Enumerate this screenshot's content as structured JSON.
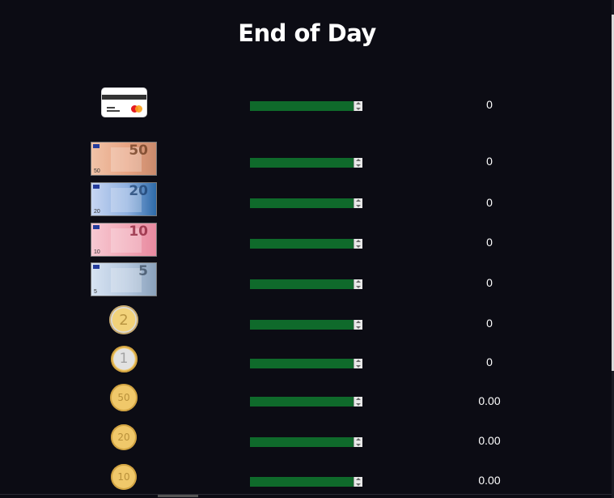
{
  "title": "End of Day",
  "rows": [
    {
      "kind": "card",
      "icon": "credit-card-icon",
      "value": "0"
    },
    {
      "kind": "note",
      "icon": "euro-50-note-icon",
      "denom": "50",
      "value": "0"
    },
    {
      "kind": "note",
      "icon": "euro-20-note-icon",
      "denom": "20",
      "value": "0"
    },
    {
      "kind": "note",
      "icon": "euro-10-note-icon",
      "denom": "10",
      "value": "0"
    },
    {
      "kind": "note",
      "icon": "euro-5-note-icon",
      "denom": "5",
      "value": "0"
    },
    {
      "kind": "coin",
      "icon": "euro-2-coin-icon",
      "denom": "2",
      "value": "0"
    },
    {
      "kind": "coin",
      "icon": "euro-1-coin-icon",
      "denom": "1",
      "value": "0"
    },
    {
      "kind": "coin",
      "icon": "euro-cent-50-coin-icon",
      "denom": "50",
      "value": "0.00"
    },
    {
      "kind": "coin",
      "icon": "euro-cent-20-coin-icon",
      "denom": "20",
      "value": "0.00"
    },
    {
      "kind": "coin",
      "icon": "euro-cent-10-coin-icon",
      "denom": "10",
      "value": "0.00"
    }
  ],
  "colors": {
    "background": "#0c0c14",
    "stepper": "#0f6a2b",
    "text": "#ffffff"
  }
}
